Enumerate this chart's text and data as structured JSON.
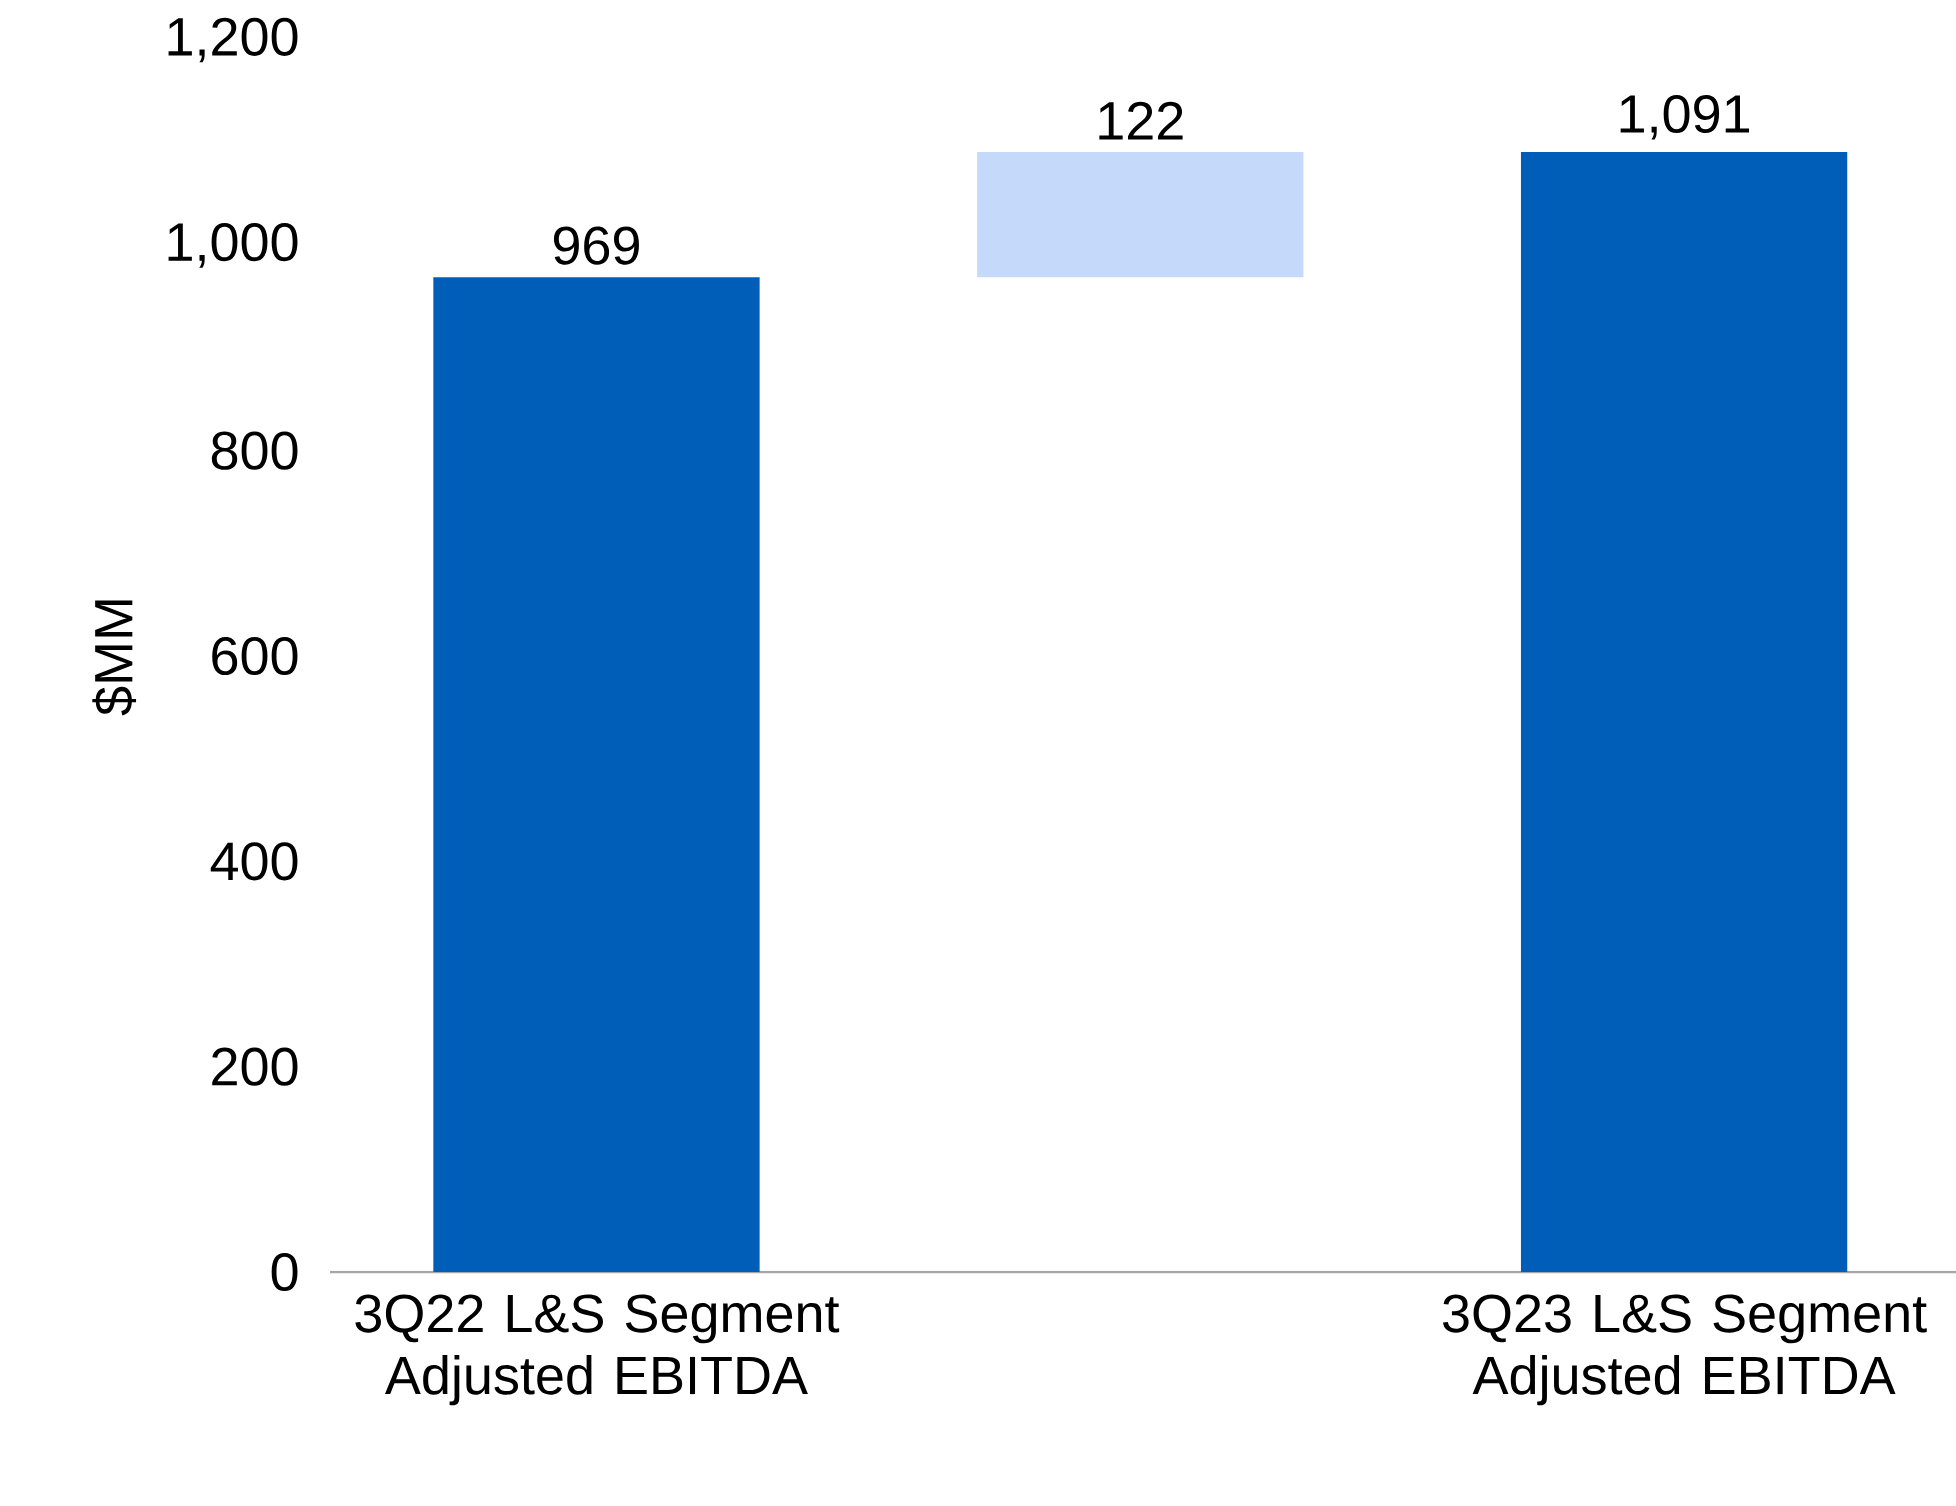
{
  "chart_data": {
    "type": "bar",
    "ylabel": "$MM",
    "categories": [
      "3Q22 L&S Segment Adjusted EBITDA",
      null,
      "3Q23 L&S Segment Adjusted EBITDA"
    ],
    "values": [
      969,
      122,
      1091
    ],
    "base": [
      0,
      969,
      0
    ],
    "colors": [
      "#005eb8",
      "#c5d9fa",
      "#005eb8"
    ],
    "value_labels": [
      "969",
      "122",
      "1,091"
    ],
    "ylim": [
      0,
      1200
    ],
    "yticks": [
      0,
      200,
      400,
      600,
      800,
      {
        "value": 1000,
        "label": "1,000"
      },
      {
        "value": 1200,
        "label": "1,200"
      }
    ]
  }
}
